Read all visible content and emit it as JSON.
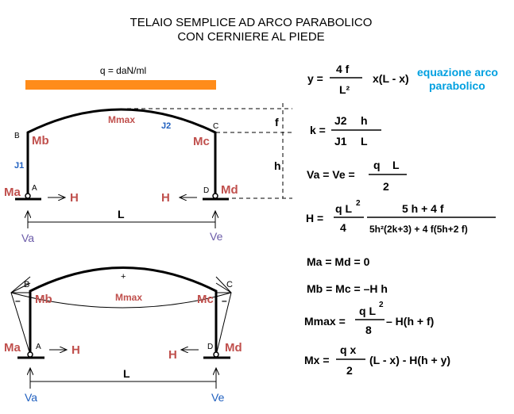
{
  "title": {
    "line1": "TELAIO SEMPLICE AD ARCO PARABOLICO",
    "line2": "CON CERNIERE AL PIEDE"
  },
  "load": {
    "label": "q = daN/ml"
  },
  "diagram": {
    "mmax": "Mmax",
    "b": "B",
    "c": "C",
    "a": "A",
    "d": "D",
    "mb": "Mb",
    "mc": "Mc",
    "ma": "Ma",
    "md": "Md",
    "j1": "J1",
    "j2": "J2",
    "h": "H",
    "f": "f",
    "hdim": "h",
    "l": "L",
    "va": "Va",
    "ve": "Ve",
    "plus": "+",
    "minus": "–"
  },
  "formulas": {
    "y_lhs": "y =",
    "y_num": "4 f",
    "y_den": "L²",
    "y_rhs": "x(L - x)",
    "note1": "equazione arco",
    "note2": "parabolico",
    "k_lhs": "k =",
    "k_num1": "J2",
    "k_num2": "h",
    "k_den1": "J1",
    "k_den2": "L",
    "va_lhs": "Va = Ve =",
    "va_num1": "q",
    "va_num2": "L",
    "va_den": "2",
    "h_lhs": "H  =",
    "h_num1": "q L",
    "h_sup": "2",
    "h_den1": "4",
    "h_num2": "5 h + 4 f",
    "h_den2": "5h²(2k+3) + 4 f(5h+2 f)",
    "mamd": "Ma = Md = 0",
    "mbmc": "Mb = Mc = –H h",
    "mmax_lhs": "Mmax =",
    "mmax_num": "q L",
    "mmax_sup": "2",
    "mmax_den": "8",
    "mmax_rhs": "– H(h + f)",
    "mx_lhs": "Mx =",
    "mx_num": "q x",
    "mx_den": "2",
    "mx_rhs": "(L - x) - H(h + y)"
  }
}
